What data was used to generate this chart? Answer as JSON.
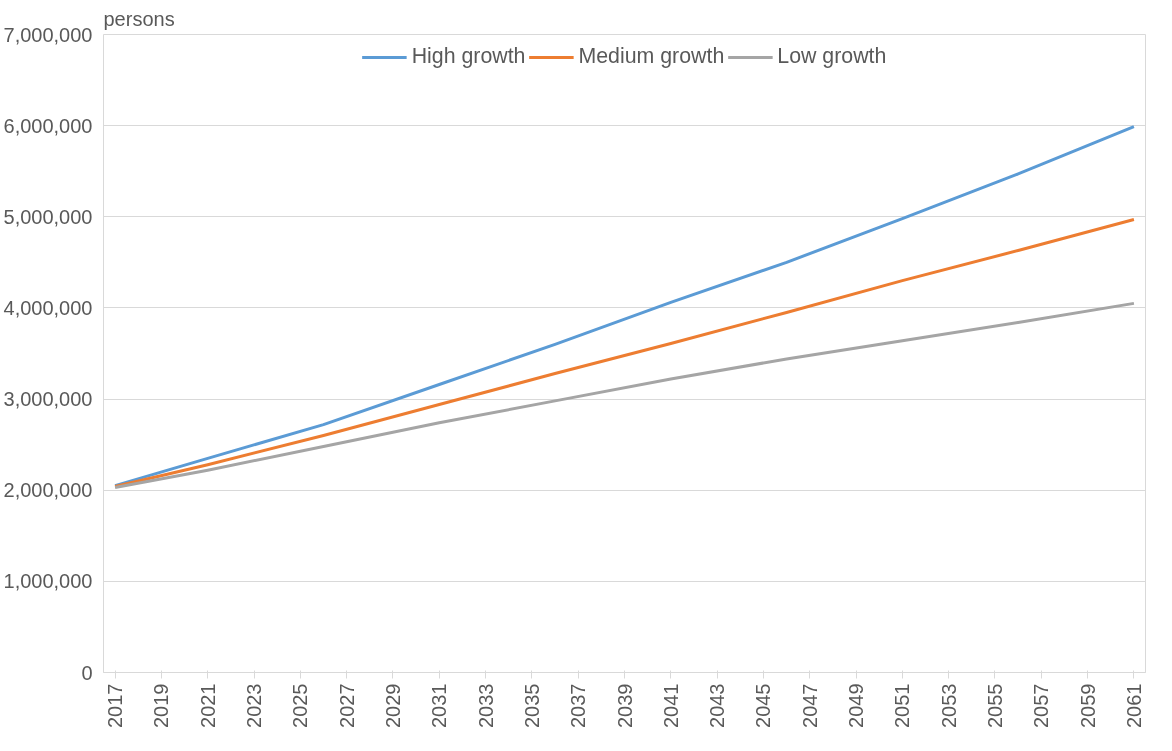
{
  "chart_data": {
    "type": "line",
    "ylabel": "persons",
    "x": [
      2017,
      2021,
      2026,
      2031,
      2036,
      2041,
      2046,
      2051,
      2056,
      2061
    ],
    "series": [
      {
        "name": "High growth",
        "color": "#5b9bd5",
        "values": [
          2050000,
          2350000,
          2720000,
          3160000,
          3600000,
          4060000,
          4500000,
          4980000,
          5470000,
          5990000
        ]
      },
      {
        "name": "Medium growth",
        "color": "#ed7d31",
        "values": [
          2040000,
          2280000,
          2600000,
          2940000,
          3280000,
          3610000,
          3950000,
          4300000,
          4630000,
          4970000
        ]
      },
      {
        "name": "Low growth",
        "color": "#a5a5a5",
        "values": [
          2030000,
          2220000,
          2480000,
          2740000,
          2980000,
          3220000,
          3440000,
          3640000,
          3840000,
          4050000
        ]
      }
    ],
    "xlim": [
      2016.5,
      2061.5
    ],
    "xticks": [
      2017,
      2019,
      2021,
      2023,
      2025,
      2027,
      2029,
      2031,
      2033,
      2035,
      2037,
      2039,
      2041,
      2043,
      2045,
      2047,
      2049,
      2051,
      2053,
      2055,
      2057,
      2059,
      2061
    ],
    "ylim": [
      0,
      7000000
    ],
    "yticks": [
      0,
      {
        "value": 1000000,
        "label": "1,000,000"
      },
      {
        "value": 2000000,
        "label": "2,000,000"
      },
      {
        "value": 3000000,
        "label": "3,000,000"
      },
      {
        "value": 4000000,
        "label": "4,000,000"
      },
      {
        "value": 5000000,
        "label": "5,000,000"
      },
      {
        "value": 6000000,
        "label": "6,000,000"
      },
      {
        "value": 7000000,
        "label": "7,000,000"
      }
    ],
    "grid": "y",
    "legend": "top",
    "marker": "none",
    "line_style": "solid"
  }
}
